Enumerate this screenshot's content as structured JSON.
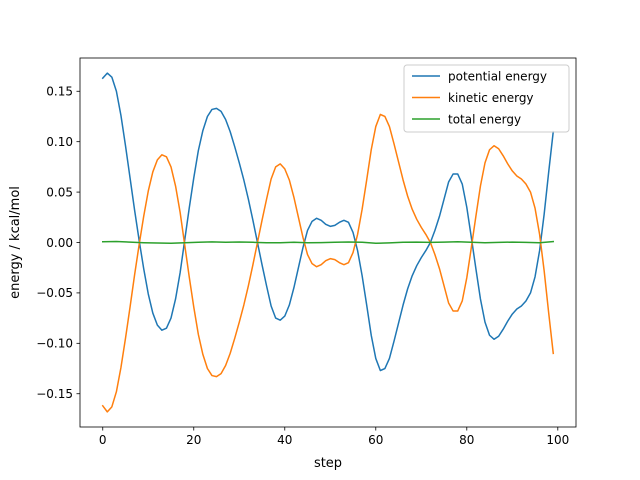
{
  "chart_data": {
    "type": "line",
    "title": "",
    "xlabel": "step",
    "ylabel": "energy / kcal/mol",
    "xlim": [
      -5,
      104
    ],
    "ylim": [
      -0.183,
      0.183
    ],
    "xticks": [
      0,
      20,
      40,
      60,
      80,
      100
    ],
    "yticks": [
      -0.15,
      -0.1,
      -0.05,
      0.0,
      0.05,
      0.1,
      0.15
    ],
    "ytick_labels": [
      "−0.15",
      "−0.10",
      "−0.05",
      "0.00",
      "0.05",
      "0.10",
      "0.15"
    ],
    "grid": false,
    "legend_position": "top-right",
    "series": [
      {
        "name": "potential energy",
        "color": "#1f77b4",
        "points": [
          [
            0,
            0.163
          ],
          [
            1,
            0.168
          ],
          [
            2,
            0.164
          ],
          [
            3,
            0.15
          ],
          [
            4,
            0.126
          ],
          [
            5,
            0.096
          ],
          [
            6,
            0.064
          ],
          [
            7,
            0.032
          ],
          [
            8,
            0.002
          ],
          [
            9,
            -0.026
          ],
          [
            10,
            -0.051
          ],
          [
            11,
            -0.07
          ],
          [
            12,
            -0.082
          ],
          [
            13,
            -0.087
          ],
          [
            14,
            -0.085
          ],
          [
            15,
            -0.075
          ],
          [
            16,
            -0.056
          ],
          [
            17,
            -0.03
          ],
          [
            18,
            0.002
          ],
          [
            19,
            0.034
          ],
          [
            20,
            0.064
          ],
          [
            21,
            0.091
          ],
          [
            22,
            0.111
          ],
          [
            23,
            0.125
          ],
          [
            24,
            0.132
          ],
          [
            25,
            0.133
          ],
          [
            26,
            0.13
          ],
          [
            27,
            0.122
          ],
          [
            28,
            0.11
          ],
          [
            29,
            0.095
          ],
          [
            30,
            0.079
          ],
          [
            31,
            0.062
          ],
          [
            32,
            0.043
          ],
          [
            33,
            0.022
          ],
          [
            34,
            0.0
          ],
          [
            35,
            -0.022
          ],
          [
            36,
            -0.043
          ],
          [
            37,
            -0.063
          ],
          [
            38,
            -0.075
          ],
          [
            39,
            -0.077
          ],
          [
            40,
            -0.073
          ],
          [
            41,
            -0.062
          ],
          [
            42,
            -0.045
          ],
          [
            43,
            -0.025
          ],
          [
            44,
            -0.005
          ],
          [
            45,
            0.012
          ],
          [
            46,
            0.021
          ],
          [
            47,
            0.024
          ],
          [
            48,
            0.022
          ],
          [
            49,
            0.018
          ],
          [
            50,
            0.016
          ],
          [
            51,
            0.017
          ],
          [
            52,
            0.02
          ],
          [
            53,
            0.022
          ],
          [
            54,
            0.02
          ],
          [
            55,
            0.01
          ],
          [
            56,
            -0.008
          ],
          [
            57,
            -0.033
          ],
          [
            58,
            -0.062
          ],
          [
            59,
            -0.092
          ],
          [
            60,
            -0.115
          ],
          [
            61,
            -0.127
          ],
          [
            62,
            -0.125
          ],
          [
            63,
            -0.115
          ],
          [
            64,
            -0.098
          ],
          [
            65,
            -0.08
          ],
          [
            66,
            -0.062
          ],
          [
            67,
            -0.046
          ],
          [
            68,
            -0.033
          ],
          [
            69,
            -0.023
          ],
          [
            70,
            -0.015
          ],
          [
            71,
            -0.008
          ],
          [
            72,
            0.0
          ],
          [
            73,
            0.012
          ],
          [
            74,
            0.026
          ],
          [
            75,
            0.043
          ],
          [
            76,
            0.06
          ],
          [
            77,
            0.068
          ],
          [
            78,
            0.068
          ],
          [
            79,
            0.058
          ],
          [
            80,
            0.035
          ],
          [
            81,
            0.005
          ],
          [
            82,
            -0.026
          ],
          [
            83,
            -0.056
          ],
          [
            84,
            -0.079
          ],
          [
            85,
            -0.092
          ],
          [
            86,
            -0.096
          ],
          [
            87,
            -0.093
          ],
          [
            88,
            -0.086
          ],
          [
            89,
            -0.078
          ],
          [
            90,
            -0.071
          ],
          [
            91,
            -0.066
          ],
          [
            92,
            -0.063
          ],
          [
            93,
            -0.058
          ],
          [
            94,
            -0.05
          ],
          [
            95,
            -0.034
          ],
          [
            96,
            -0.008
          ],
          [
            97,
            0.028
          ],
          [
            98,
            0.07
          ],
          [
            99,
            0.11
          ]
        ]
      },
      {
        "name": "kinetic energy",
        "color": "#ff7f0e",
        "points": [
          [
            0,
            -0.162
          ],
          [
            1,
            -0.168
          ],
          [
            2,
            -0.163
          ],
          [
            3,
            -0.148
          ],
          [
            4,
            -0.124
          ],
          [
            5,
            -0.095
          ],
          [
            6,
            -0.064
          ],
          [
            7,
            -0.032
          ],
          [
            8,
            -0.002
          ],
          [
            9,
            0.026
          ],
          [
            10,
            0.051
          ],
          [
            11,
            0.07
          ],
          [
            12,
            0.082
          ],
          [
            13,
            0.087
          ],
          [
            14,
            0.085
          ],
          [
            15,
            0.075
          ],
          [
            16,
            0.056
          ],
          [
            17,
            0.03
          ],
          [
            18,
            -0.002
          ],
          [
            19,
            -0.034
          ],
          [
            20,
            -0.064
          ],
          [
            21,
            -0.091
          ],
          [
            22,
            -0.111
          ],
          [
            23,
            -0.125
          ],
          [
            24,
            -0.132
          ],
          [
            25,
            -0.133
          ],
          [
            26,
            -0.13
          ],
          [
            27,
            -0.122
          ],
          [
            28,
            -0.11
          ],
          [
            29,
            -0.095
          ],
          [
            30,
            -0.079
          ],
          [
            31,
            -0.062
          ],
          [
            32,
            -0.043
          ],
          [
            33,
            -0.022
          ],
          [
            34,
            0.0
          ],
          [
            35,
            0.022
          ],
          [
            36,
            0.043
          ],
          [
            37,
            0.063
          ],
          [
            38,
            0.075
          ],
          [
            39,
            0.078
          ],
          [
            40,
            0.073
          ],
          [
            41,
            0.062
          ],
          [
            42,
            0.045
          ],
          [
            43,
            0.025
          ],
          [
            44,
            0.005
          ],
          [
            45,
            -0.012
          ],
          [
            46,
            -0.021
          ],
          [
            47,
            -0.024
          ],
          [
            48,
            -0.022
          ],
          [
            49,
            -0.018
          ],
          [
            50,
            -0.016
          ],
          [
            51,
            -0.017
          ],
          [
            52,
            -0.02
          ],
          [
            53,
            -0.022
          ],
          [
            54,
            -0.02
          ],
          [
            55,
            -0.01
          ],
          [
            56,
            0.008
          ],
          [
            57,
            0.033
          ],
          [
            58,
            0.062
          ],
          [
            59,
            0.092
          ],
          [
            60,
            0.115
          ],
          [
            61,
            0.127
          ],
          [
            62,
            0.125
          ],
          [
            63,
            0.115
          ],
          [
            64,
            0.098
          ],
          [
            65,
            0.08
          ],
          [
            66,
            0.062
          ],
          [
            67,
            0.046
          ],
          [
            68,
            0.033
          ],
          [
            69,
            0.023
          ],
          [
            70,
            0.015
          ],
          [
            71,
            0.008
          ],
          [
            72,
            0.0
          ],
          [
            73,
            -0.012
          ],
          [
            74,
            -0.026
          ],
          [
            75,
            -0.043
          ],
          [
            76,
            -0.06
          ],
          [
            77,
            -0.068
          ],
          [
            78,
            -0.068
          ],
          [
            79,
            -0.058
          ],
          [
            80,
            -0.035
          ],
          [
            81,
            -0.005
          ],
          [
            82,
            0.026
          ],
          [
            83,
            0.056
          ],
          [
            84,
            0.079
          ],
          [
            85,
            0.092
          ],
          [
            86,
            0.096
          ],
          [
            87,
            0.093
          ],
          [
            88,
            0.086
          ],
          [
            89,
            0.078
          ],
          [
            90,
            0.071
          ],
          [
            91,
            0.066
          ],
          [
            92,
            0.063
          ],
          [
            93,
            0.058
          ],
          [
            94,
            0.05
          ],
          [
            95,
            0.034
          ],
          [
            96,
            0.008
          ],
          [
            97,
            -0.028
          ],
          [
            98,
            -0.07
          ],
          [
            99,
            -0.11
          ]
        ]
      },
      {
        "name": "total energy",
        "color": "#2ca02c",
        "points": [
          [
            0,
            0.0008
          ],
          [
            3,
            0.001
          ],
          [
            6,
            0.0004
          ],
          [
            9,
            -0.0002
          ],
          [
            12,
            -0.0005
          ],
          [
            15,
            -0.0008
          ],
          [
            18,
            -0.0003
          ],
          [
            21,
            0.0002
          ],
          [
            24,
            0.0006
          ],
          [
            27,
            0.0003
          ],
          [
            30,
            0.0005
          ],
          [
            33,
            0.0002
          ],
          [
            36,
            -0.0003
          ],
          [
            39,
            -0.0002
          ],
          [
            42,
            0.0003
          ],
          [
            45,
            -0.0002
          ],
          [
            48,
            -0.0001
          ],
          [
            51,
            0.0002
          ],
          [
            54,
            0.0005
          ],
          [
            57,
            0.0002
          ],
          [
            60,
            -0.0008
          ],
          [
            63,
            -0.0004
          ],
          [
            66,
            0.0002
          ],
          [
            69,
            0.0004
          ],
          [
            72,
            0.0001
          ],
          [
            75,
            0.0004
          ],
          [
            78,
            0.0007
          ],
          [
            81,
            0.0002
          ],
          [
            84,
            -0.0002
          ],
          [
            87,
            0.0001
          ],
          [
            90,
            0.0004
          ],
          [
            93,
            0.0001
          ],
          [
            96,
            -0.0002
          ],
          [
            99,
            0.0009
          ]
        ]
      }
    ]
  }
}
